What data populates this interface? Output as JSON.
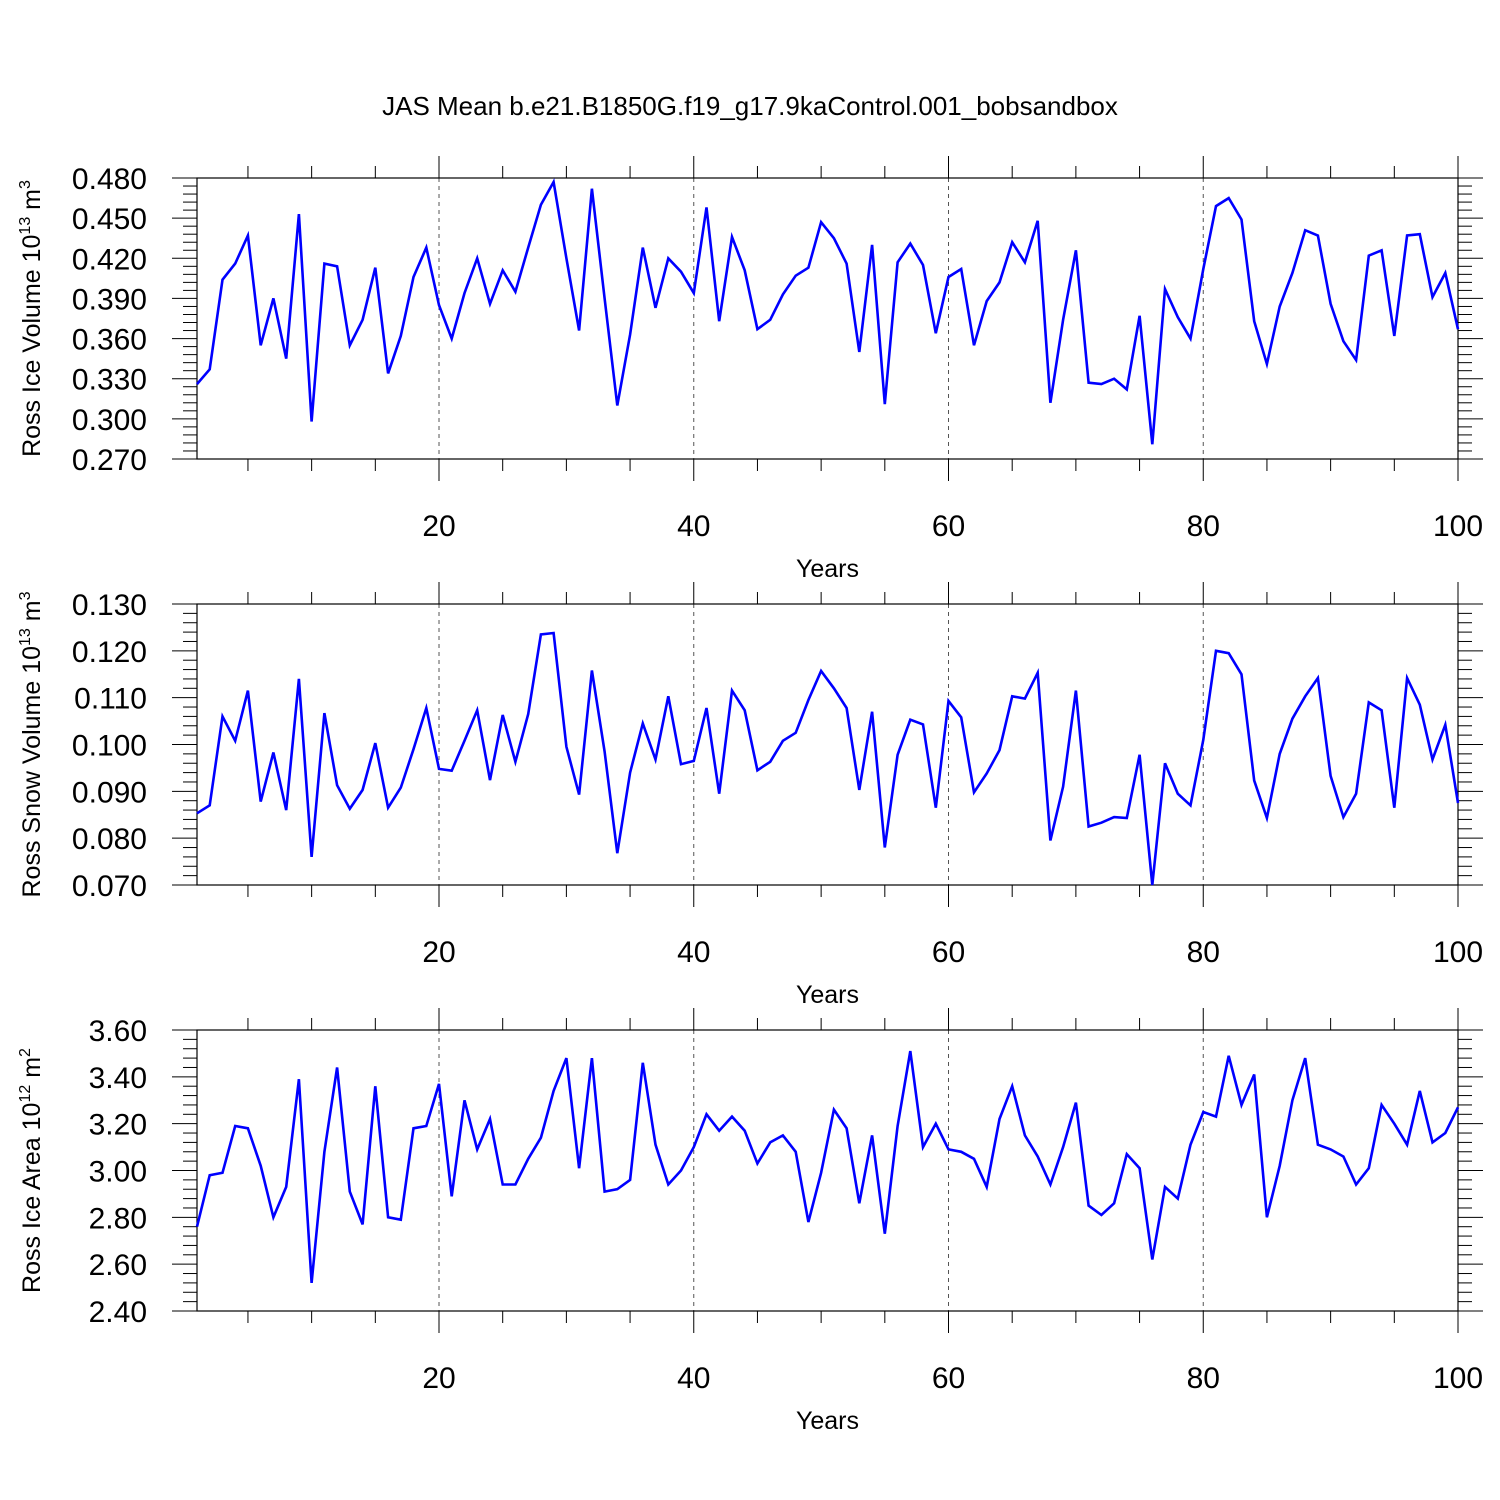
{
  "figure": {
    "title": "JAS Mean b.e21.B1850G.f19_g17.9kaControl.001_bobsandbox"
  },
  "chart_data": [
    {
      "type": "line",
      "xlabel": "Years",
      "ylabel": {
        "base": "Ross Ice Volume 10",
        "sup": "13",
        "unit": " m",
        "unit_sup": "3"
      },
      "xlim": [
        1,
        100
      ],
      "ylim": [
        0.27,
        0.48
      ],
      "xticks": [
        20,
        40,
        60,
        80,
        100
      ],
      "yticks": [
        "0.270",
        "0.300",
        "0.330",
        "0.360",
        "0.390",
        "0.420",
        "0.450",
        "0.480"
      ],
      "grid": "dashed vertical lines at x ticks",
      "color": "#0000ff",
      "x": [
        1,
        2,
        3,
        4,
        5,
        6,
        7,
        8,
        9,
        10,
        11,
        12,
        13,
        14,
        15,
        16,
        17,
        18,
        19,
        20,
        21,
        22,
        23,
        24,
        25,
        26,
        27,
        28,
        29,
        30,
        31,
        32,
        33,
        34,
        35,
        36,
        37,
        38,
        39,
        40,
        41,
        42,
        43,
        44,
        45,
        46,
        47,
        48,
        49,
        50,
        51,
        52,
        53,
        54,
        55,
        56,
        57,
        58,
        59,
        60,
        61,
        62,
        63,
        64,
        65,
        66,
        67,
        68,
        69,
        70,
        71,
        72,
        73,
        74,
        75,
        76,
        77,
        78,
        79,
        80,
        81,
        82,
        83,
        84,
        85,
        86,
        87,
        88,
        89,
        90,
        91,
        92,
        93,
        94,
        95,
        96,
        97,
        98,
        99,
        100
      ],
      "values": [
        0.326,
        0.337,
        0.404,
        0.416,
        0.437,
        0.355,
        0.39,
        0.345,
        0.453,
        0.298,
        0.416,
        0.414,
        0.355,
        0.374,
        0.413,
        0.334,
        0.362,
        0.406,
        0.428,
        0.385,
        0.36,
        0.394,
        0.42,
        0.386,
        0.411,
        0.395,
        0.428,
        0.46,
        0.477,
        0.42,
        0.366,
        0.472,
        0.39,
        0.31,
        0.363,
        0.428,
        0.383,
        0.42,
        0.41,
        0.394,
        0.458,
        0.373,
        0.436,
        0.411,
        0.367,
        0.374,
        0.393,
        0.407,
        0.413,
        0.447,
        0.435,
        0.416,
        0.35,
        0.43,
        0.311,
        0.417,
        0.431,
        0.415,
        0.364,
        0.406,
        0.412,
        0.355,
        0.388,
        0.402,
        0.432,
        0.417,
        0.448,
        0.312,
        0.374,
        0.426,
        0.327,
        0.326,
        0.33,
        0.322,
        0.377,
        0.281,
        0.397,
        0.376,
        0.36,
        0.412,
        0.459,
        0.465,
        0.449,
        0.373,
        0.341,
        0.384,
        0.409,
        0.441,
        0.437,
        0.386,
        0.358,
        0.344,
        0.422,
        0.426,
        0.362,
        0.437,
        0.438,
        0.391,
        0.409,
        0.367
      ]
    },
    {
      "type": "line",
      "xlabel": "Years",
      "ylabel": {
        "base": "Ross Snow Volume 10",
        "sup": "13",
        "unit": " m",
        "unit_sup": "3"
      },
      "xlim": [
        1,
        100
      ],
      "ylim": [
        0.07,
        0.13
      ],
      "xticks": [
        20,
        40,
        60,
        80,
        100
      ],
      "yticks": [
        "0.070",
        "0.080",
        "0.090",
        "0.100",
        "0.110",
        "0.120",
        "0.130"
      ],
      "grid": "dashed vertical lines at x ticks",
      "color": "#0000ff",
      "x": [
        1,
        2,
        3,
        4,
        5,
        6,
        7,
        8,
        9,
        10,
        11,
        12,
        13,
        14,
        15,
        16,
        17,
        18,
        19,
        20,
        21,
        22,
        23,
        24,
        25,
        26,
        27,
        28,
        29,
        30,
        31,
        32,
        33,
        34,
        35,
        36,
        37,
        38,
        39,
        40,
        41,
        42,
        43,
        44,
        45,
        46,
        47,
        48,
        49,
        50,
        51,
        52,
        53,
        54,
        55,
        56,
        57,
        58,
        59,
        60,
        61,
        62,
        63,
        64,
        65,
        66,
        67,
        68,
        69,
        70,
        71,
        72,
        73,
        74,
        75,
        76,
        77,
        78,
        79,
        80,
        81,
        82,
        83,
        84,
        85,
        86,
        87,
        88,
        89,
        90,
        91,
        92,
        93,
        94,
        95,
        96,
        97,
        98,
        99,
        100
      ],
      "values": [
        0.0853,
        0.087,
        0.106,
        0.1008,
        0.1115,
        0.0878,
        0.0983,
        0.086,
        0.114,
        0.076,
        0.1067,
        0.0913,
        0.0863,
        0.0903,
        0.1003,
        0.0865,
        0.0908,
        0.099,
        0.1078,
        0.0948,
        0.0944,
        0.1008,
        0.1073,
        0.0924,
        0.1063,
        0.0963,
        0.1065,
        0.1235,
        0.1238,
        0.0995,
        0.0893,
        0.1158,
        0.0985,
        0.0768,
        0.094,
        0.1045,
        0.0968,
        0.1103,
        0.0958,
        0.0965,
        0.1078,
        0.0895,
        0.1115,
        0.1073,
        0.0945,
        0.0963,
        0.1008,
        0.1025,
        0.1095,
        0.1157,
        0.112,
        0.1078,
        0.0903,
        0.107,
        0.078,
        0.0978,
        0.1053,
        0.1043,
        0.0865,
        0.1093,
        0.1058,
        0.0898,
        0.0938,
        0.0988,
        0.1103,
        0.1098,
        0.1153,
        0.0795,
        0.091,
        0.1115,
        0.0825,
        0.0833,
        0.0845,
        0.0843,
        0.0978,
        0.07,
        0.096,
        0.0895,
        0.087,
        0.101,
        0.12,
        0.1195,
        0.115,
        0.0923,
        0.0843,
        0.098,
        0.1055,
        0.1103,
        0.1142,
        0.0933,
        0.0845,
        0.0895,
        0.109,
        0.1073,
        0.0865,
        0.1142,
        0.1085,
        0.0968,
        0.1042,
        0.0875
      ]
    },
    {
      "type": "line",
      "xlabel": "Years",
      "ylabel": {
        "base": "Ross Ice Area 10",
        "sup": "12",
        "unit": " m",
        "unit_sup": "2"
      },
      "xlim": [
        1,
        100
      ],
      "ylim": [
        2.4,
        3.6
      ],
      "xticks": [
        20,
        40,
        60,
        80,
        100
      ],
      "yticks": [
        "2.40",
        "2.60",
        "2.80",
        "3.00",
        "3.20",
        "3.40",
        "3.60"
      ],
      "grid": "dashed vertical lines at x ticks",
      "color": "#0000ff",
      "x": [
        1,
        2,
        3,
        4,
        5,
        6,
        7,
        8,
        9,
        10,
        11,
        12,
        13,
        14,
        15,
        16,
        17,
        18,
        19,
        20,
        21,
        22,
        23,
        24,
        25,
        26,
        27,
        28,
        29,
        30,
        31,
        32,
        33,
        34,
        35,
        36,
        37,
        38,
        39,
        40,
        41,
        42,
        43,
        44,
        45,
        46,
        47,
        48,
        49,
        50,
        51,
        52,
        53,
        54,
        55,
        56,
        57,
        58,
        59,
        60,
        61,
        62,
        63,
        64,
        65,
        66,
        67,
        68,
        69,
        70,
        71,
        72,
        73,
        74,
        75,
        76,
        77,
        78,
        79,
        80,
        81,
        82,
        83,
        84,
        85,
        86,
        87,
        88,
        89,
        90,
        91,
        92,
        93,
        94,
        95,
        96,
        97,
        98,
        99,
        100
      ],
      "values": [
        2.76,
        2.98,
        2.99,
        3.19,
        3.18,
        3.02,
        2.8,
        2.93,
        3.39,
        2.52,
        3.08,
        3.44,
        2.91,
        2.77,
        3.36,
        2.8,
        2.79,
        3.18,
        3.19,
        3.37,
        2.89,
        3.3,
        3.09,
        3.22,
        2.94,
        2.94,
        3.05,
        3.14,
        3.34,
        3.48,
        3.01,
        3.48,
        2.91,
        2.92,
        2.96,
        3.46,
        3.11,
        2.94,
        3.0,
        3.1,
        3.24,
        3.17,
        3.23,
        3.17,
        3.03,
        3.12,
        3.15,
        3.08,
        2.78,
        2.99,
        3.26,
        3.18,
        2.86,
        3.15,
        2.73,
        3.19,
        3.51,
        3.1,
        3.2,
        3.09,
        3.08,
        3.05,
        2.93,
        3.22,
        3.36,
        3.15,
        3.06,
        2.94,
        3.1,
        3.29,
        2.85,
        2.81,
        2.86,
        3.07,
        3.01,
        2.62,
        2.93,
        2.88,
        3.11,
        3.25,
        3.23,
        3.49,
        3.28,
        3.41,
        2.8,
        3.02,
        3.3,
        3.48,
        3.11,
        3.09,
        3.06,
        2.94,
        3.01,
        3.28,
        3.2,
        3.11,
        3.34,
        3.12,
        3.16,
        3.27
      ]
    }
  ]
}
